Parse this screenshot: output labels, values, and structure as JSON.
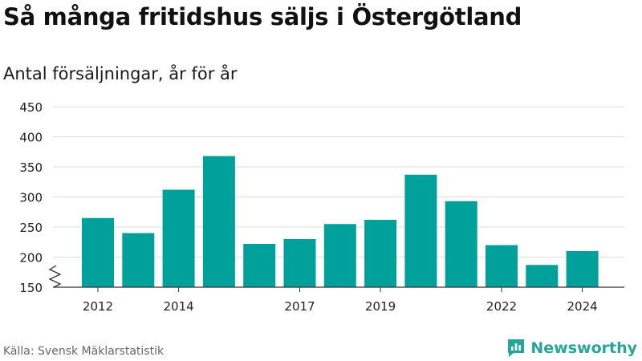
{
  "header": {
    "title": "Så många fritidshus säljs i Östergötland",
    "subtitle": "Antal försäljningar, år för år"
  },
  "footer": {
    "source": "Källa: Svensk Mäklarstatistik",
    "brand": "Newsworthy",
    "brand_icon": "newsworthy-logo-icon"
  },
  "colors": {
    "bar": "#00a19a",
    "grid": "#dddddd",
    "axis": "#333333",
    "brand": "#26a69a"
  },
  "chart_data": {
    "type": "bar",
    "categories": [
      "2012",
      "2013",
      "2014",
      "2015",
      "2016",
      "2017",
      "2018",
      "2019",
      "2020",
      "2021",
      "2022",
      "2023",
      "2024"
    ],
    "values": [
      265,
      240,
      312,
      368,
      222,
      230,
      255,
      262,
      337,
      293,
      220,
      187,
      210
    ],
    "x_tick_labels": [
      "2012",
      "2014",
      "2017",
      "2019",
      "2022",
      "2024"
    ],
    "y_ticks": [
      150,
      200,
      250,
      300,
      350,
      400,
      450
    ],
    "ylim": [
      150,
      450
    ],
    "y_axis_break": true,
    "grid": true,
    "legend": "none",
    "title": "Så många fritidshus säljs i Östergötland",
    "subtitle": "Antal försäljningar, år för år",
    "xlabel": "",
    "ylabel": ""
  }
}
